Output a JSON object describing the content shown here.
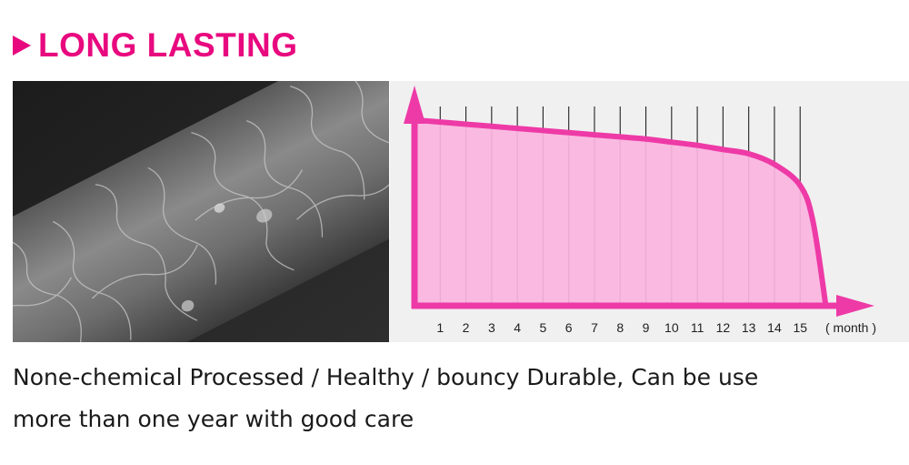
{
  "header": {
    "title": "LONG LASTING"
  },
  "photo": {
    "subject": "hair-strand-microscope-image"
  },
  "chart_data": {
    "type": "area",
    "x": [
      0,
      1,
      2,
      3,
      4,
      5,
      6,
      7,
      8,
      9,
      10,
      11,
      12,
      13,
      14,
      15,
      15.5,
      16
    ],
    "y": [
      88,
      87,
      86,
      85,
      84,
      83,
      82,
      81,
      80,
      79,
      77.5,
      76,
      74,
      72,
      67,
      57,
      40,
      0
    ],
    "tick_labels": [
      "1",
      "2",
      "3",
      "4",
      "5",
      "6",
      "7",
      "8",
      "9",
      "10",
      "11",
      "12",
      "13",
      "14",
      "15"
    ],
    "xlabel": "( month )",
    "xlim": [
      0,
      16.3
    ],
    "ylim": [
      0,
      100
    ],
    "grid": "vertical",
    "colors": {
      "fill": "#fbb4e0",
      "line": "#ee3aa6",
      "axis": "#ee3aa6",
      "grid": "#222222"
    }
  },
  "description": {
    "line1": "None-chemical Processed / Healthy / bouncy Durable, Can be use",
    "line2": "more than one year with good care"
  }
}
